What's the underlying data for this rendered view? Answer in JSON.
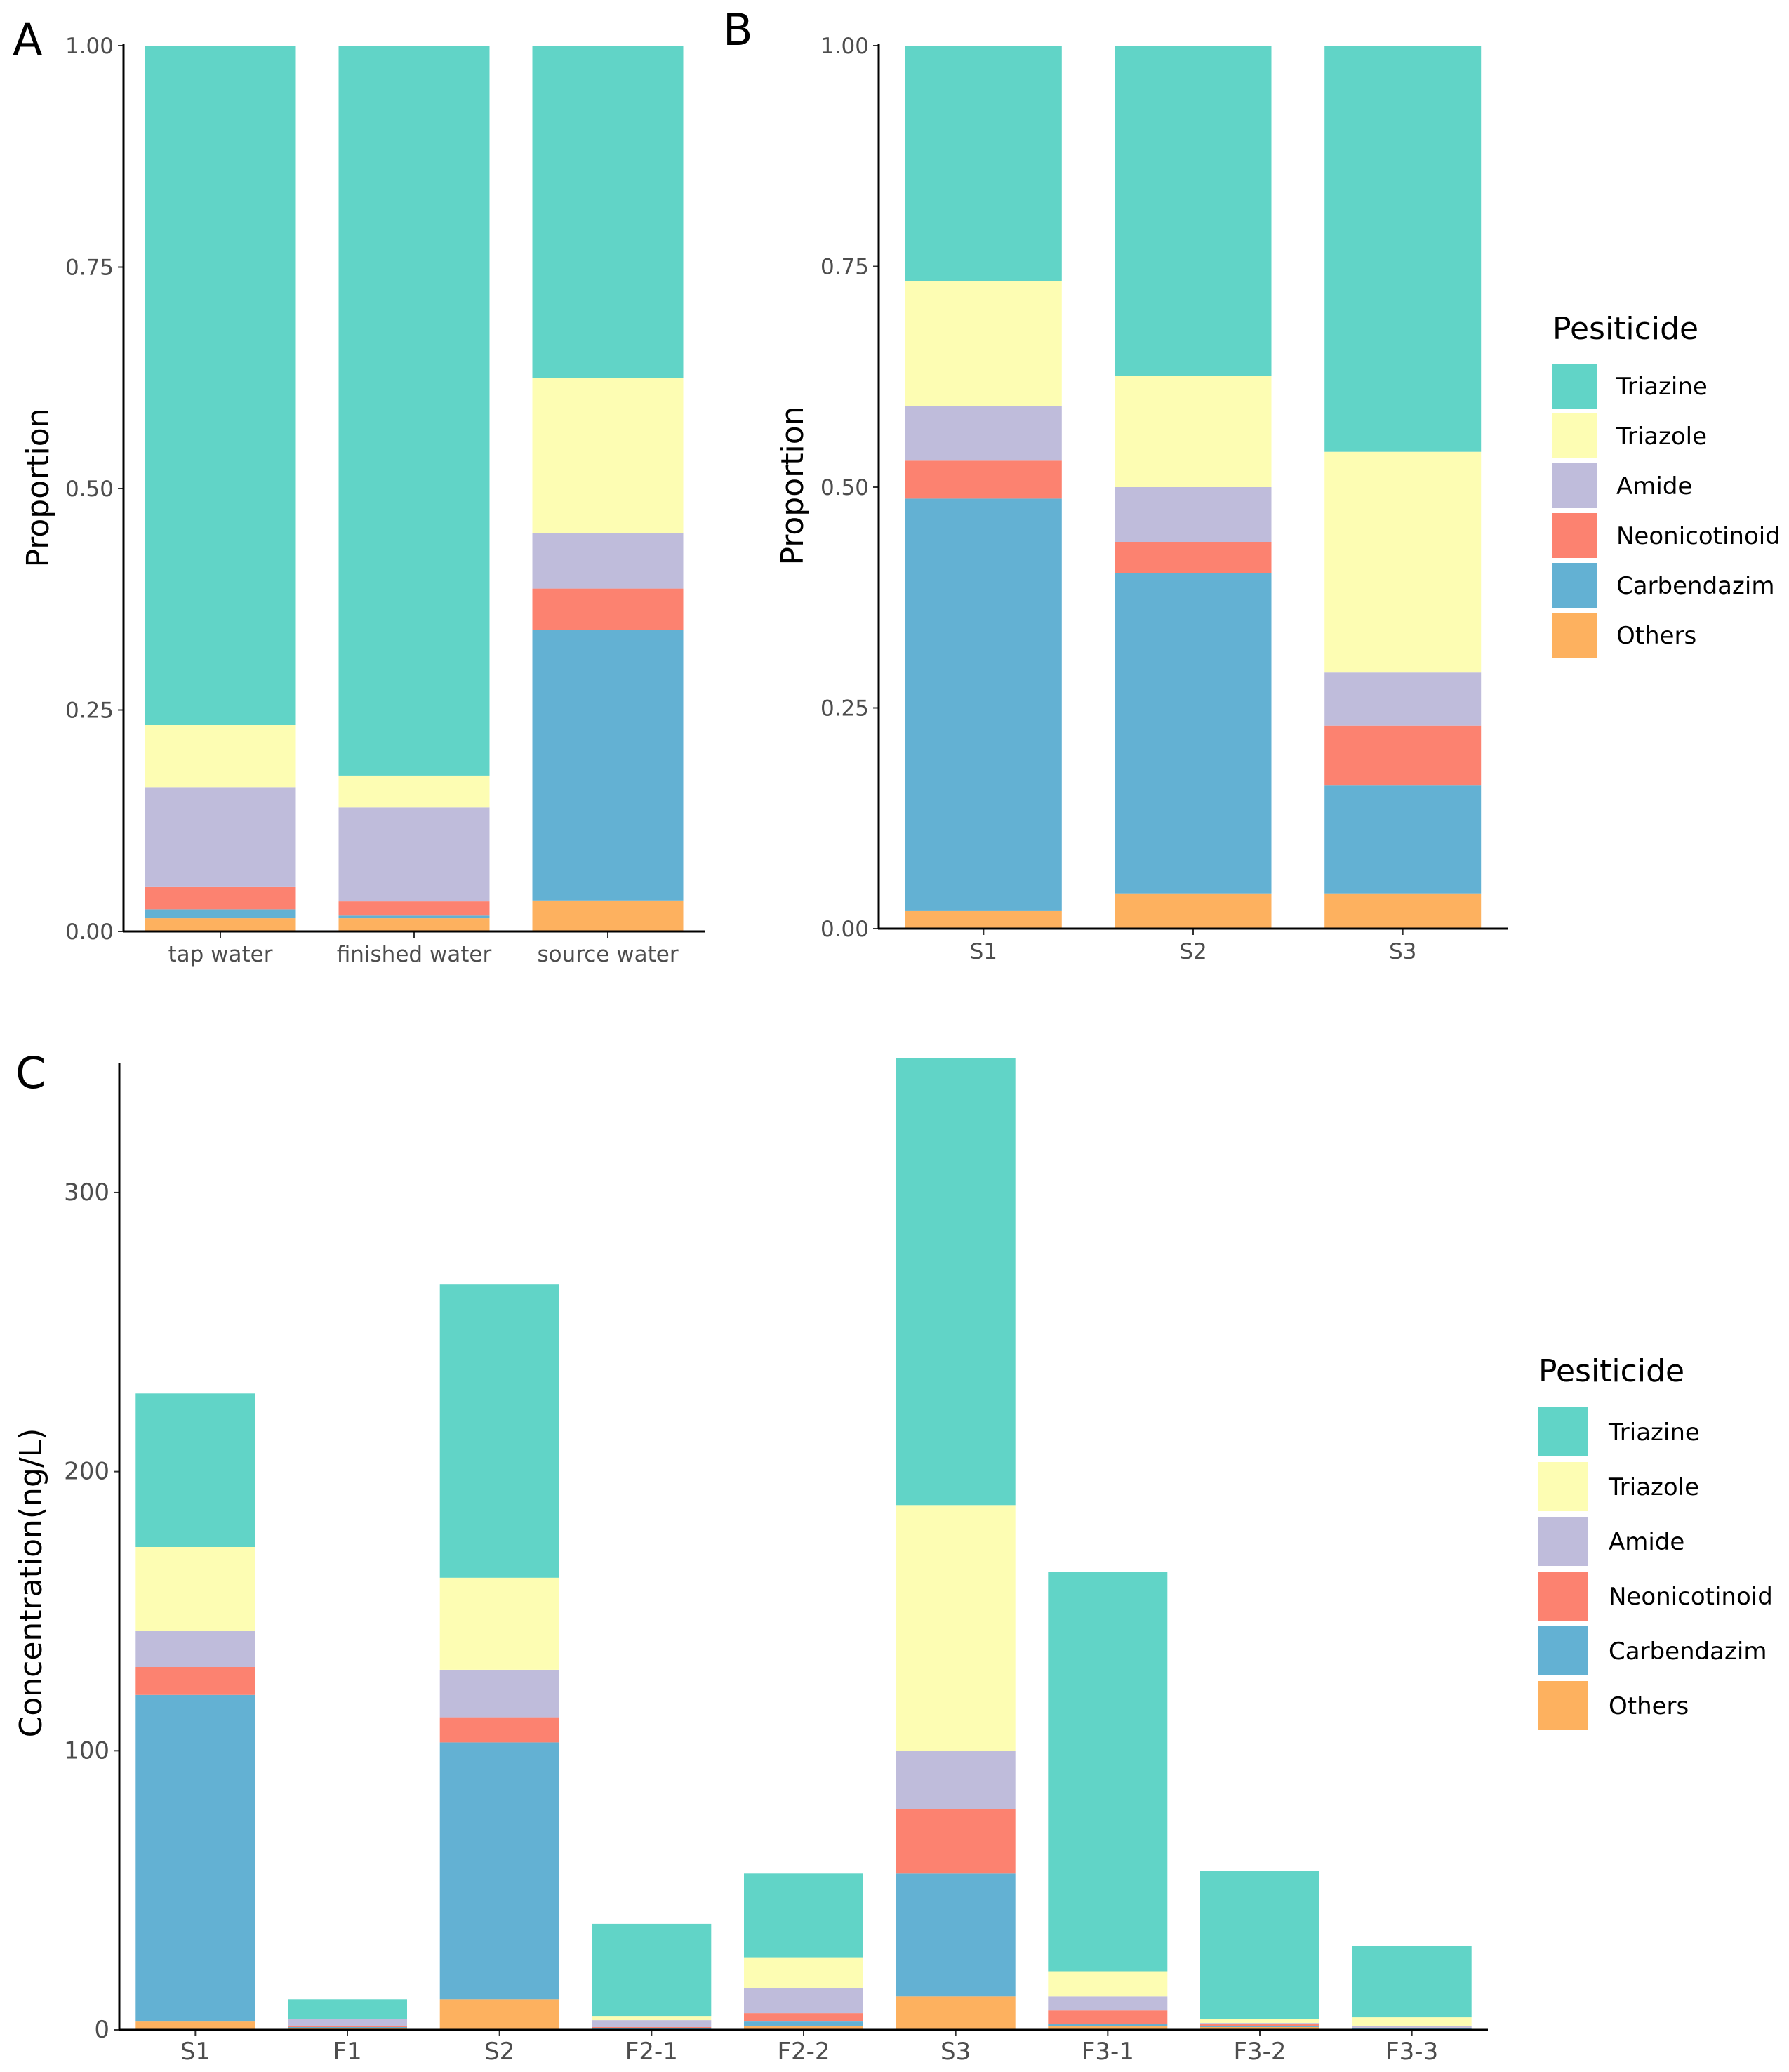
{
  "palette": {
    "Triazine": "#61d4c7",
    "Triazole": "#fdfdb3",
    "Amide": "#bfbcdb",
    "Neonicotinoid": "#fc8270",
    "Carbendazim": "#63b1d3",
    "Others": "#fdb15f"
  },
  "chart_data": [
    {
      "panel_label": "A",
      "type": "bar",
      "stacked": true,
      "ylabel": "Proportion",
      "ylim": [
        0,
        1
      ],
      "yticks": [
        "0.00",
        "0.25",
        "0.50",
        "0.75",
        "1.00"
      ],
      "categories": [
        "tap water",
        "finished water",
        "source water"
      ],
      "series": [
        {
          "name": "Others",
          "values": [
            0.015,
            0.015,
            0.035
          ]
        },
        {
          "name": "Carbendazim",
          "values": [
            0.01,
            0.003,
            0.305
          ]
        },
        {
          "name": "Neonicotinoid",
          "values": [
            0.025,
            0.016,
            0.047
          ]
        },
        {
          "name": "Amide",
          "values": [
            0.113,
            0.106,
            0.063
          ]
        },
        {
          "name": "Triazole",
          "values": [
            0.07,
            0.036,
            0.175
          ]
        },
        {
          "name": "Triazine",
          "values": [
            0.767,
            0.824,
            0.375
          ]
        }
      ]
    },
    {
      "panel_label": "B",
      "type": "bar",
      "stacked": true,
      "ylabel": "Proportion",
      "ylim": [
        0,
        1
      ],
      "yticks": [
        "0.00",
        "0.25",
        "0.50",
        "0.75",
        "1.00"
      ],
      "categories": [
        "S1",
        "S2",
        "S3"
      ],
      "legend_title": "Pesiticide",
      "legend": [
        "Triazine",
        "Triazole",
        "Amide",
        "Neonicotinoid",
        "Carbendazim",
        "Others"
      ],
      "series": [
        {
          "name": "Others",
          "values": [
            0.02,
            0.04,
            0.04
          ]
        },
        {
          "name": "Carbendazim",
          "values": [
            0.467,
            0.363,
            0.122
          ]
        },
        {
          "name": "Neonicotinoid",
          "values": [
            0.043,
            0.035,
            0.068
          ]
        },
        {
          "name": "Amide",
          "values": [
            0.062,
            0.062,
            0.06
          ]
        },
        {
          "name": "Triazole",
          "values": [
            0.141,
            0.126,
            0.25
          ]
        },
        {
          "name": "Triazine",
          "values": [
            0.267,
            0.374,
            0.46
          ]
        }
      ]
    },
    {
      "panel_label": "C",
      "type": "bar",
      "stacked": true,
      "ylabel": "Concentration(ng/L)",
      "ylim": [
        0,
        346
      ],
      "yticks": [
        "0",
        "100",
        "200",
        "300"
      ],
      "categories": [
        "S1",
        "F1",
        "S2",
        "F2-1",
        "F2-2",
        "S3",
        "F3-1",
        "F3-2",
        "F3-3"
      ],
      "legend_title": "Pesiticide",
      "legend": [
        "Triazine",
        "Triazole",
        "Amide",
        "Neonicotinoid",
        "Carbendazim",
        "Others"
      ],
      "series": [
        {
          "name": "Others",
          "values": [
            3,
            0.5,
            11,
            0.3,
            1.5,
            12,
            1.5,
            1,
            0.3
          ]
        },
        {
          "name": "Carbendazim",
          "values": [
            117,
            0.5,
            92,
            0.3,
            1.5,
            44,
            0.5,
            0.3,
            0.2
          ]
        },
        {
          "name": "Neonicotinoid",
          "values": [
            10,
            0.5,
            9,
            0.4,
            3,
            23,
            5,
            0.7,
            0.3
          ]
        },
        {
          "name": "Amide",
          "values": [
            13,
            2.5,
            17,
            2.5,
            9,
            21,
            5,
            0.5,
            0.7
          ]
        },
        {
          "name": "Triazole",
          "values": [
            30,
            0,
            33,
            1.5,
            11,
            88,
            9,
            1.5,
            3
          ]
        },
        {
          "name": "Triazine",
          "values": [
            55,
            7,
            105,
            33,
            30,
            160,
            143,
            53,
            25.5
          ]
        }
      ]
    }
  ]
}
